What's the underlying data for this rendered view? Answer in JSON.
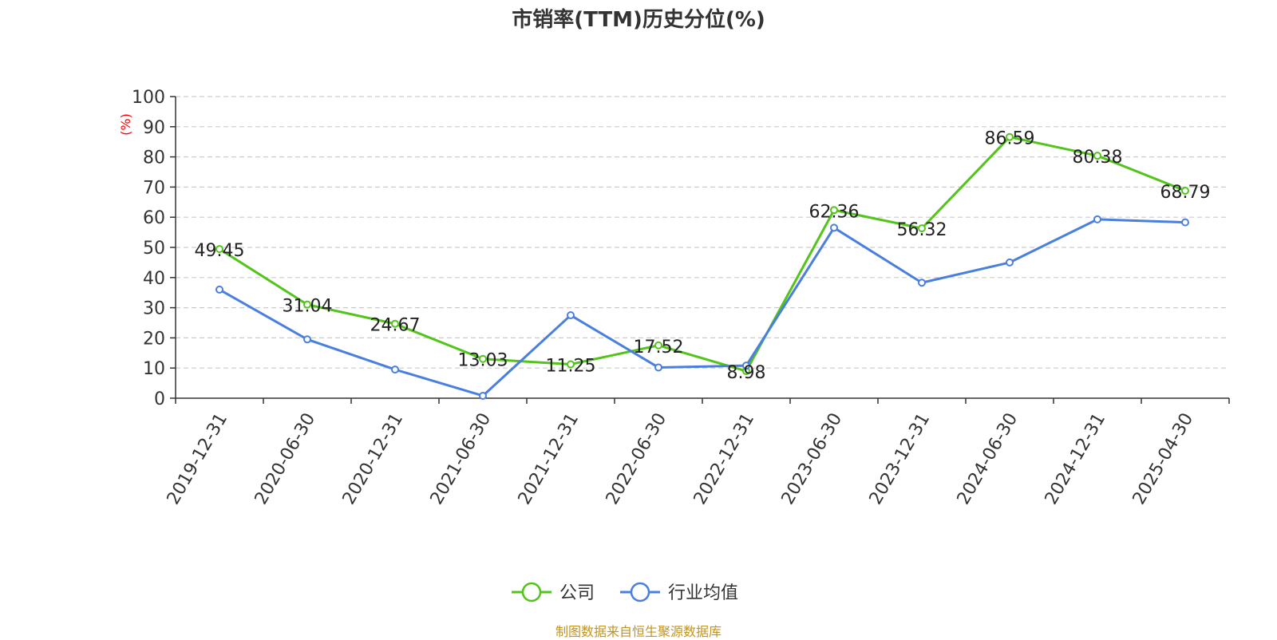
{
  "title": "市销率(TTM)历史分位(%)",
  "source_note": "制图数据来自恒生聚源数据库",
  "chart_data": {
    "type": "line",
    "title": "市销率(TTM)历史分位(%)",
    "xlabel": "",
    "ylabel": "(%)",
    "ylim": [
      0,
      100
    ],
    "yticks": [
      0,
      10,
      20,
      30,
      40,
      50,
      60,
      70,
      80,
      90,
      100
    ],
    "grid": true,
    "legend_position": "bottom",
    "categories": [
      "2019-12-31",
      "2020-06-30",
      "2020-12-31",
      "2021-06-30",
      "2021-12-31",
      "2022-06-30",
      "2022-12-31",
      "2023-06-30",
      "2023-12-31",
      "2024-06-30",
      "2024-12-31",
      "2025-04-30"
    ],
    "series": [
      {
        "name": "公司",
        "color": "#52c41a",
        "show_labels": true,
        "values": [
          49.45,
          31.04,
          24.67,
          13.03,
          11.25,
          17.52,
          8.98,
          62.36,
          56.32,
          86.59,
          80.38,
          68.79
        ]
      },
      {
        "name": "行业均值",
        "color": "#4a7fe0",
        "show_labels": false,
        "values": [
          36.0,
          19.5,
          9.5,
          0.8,
          27.5,
          10.2,
          10.8,
          56.5,
          38.3,
          45.0,
          59.3,
          58.3
        ]
      }
    ]
  },
  "colors": {
    "axis": "#333333",
    "grid": "#cccccc",
    "ylabel": "#ff0000",
    "source_note": "#c0941f"
  }
}
